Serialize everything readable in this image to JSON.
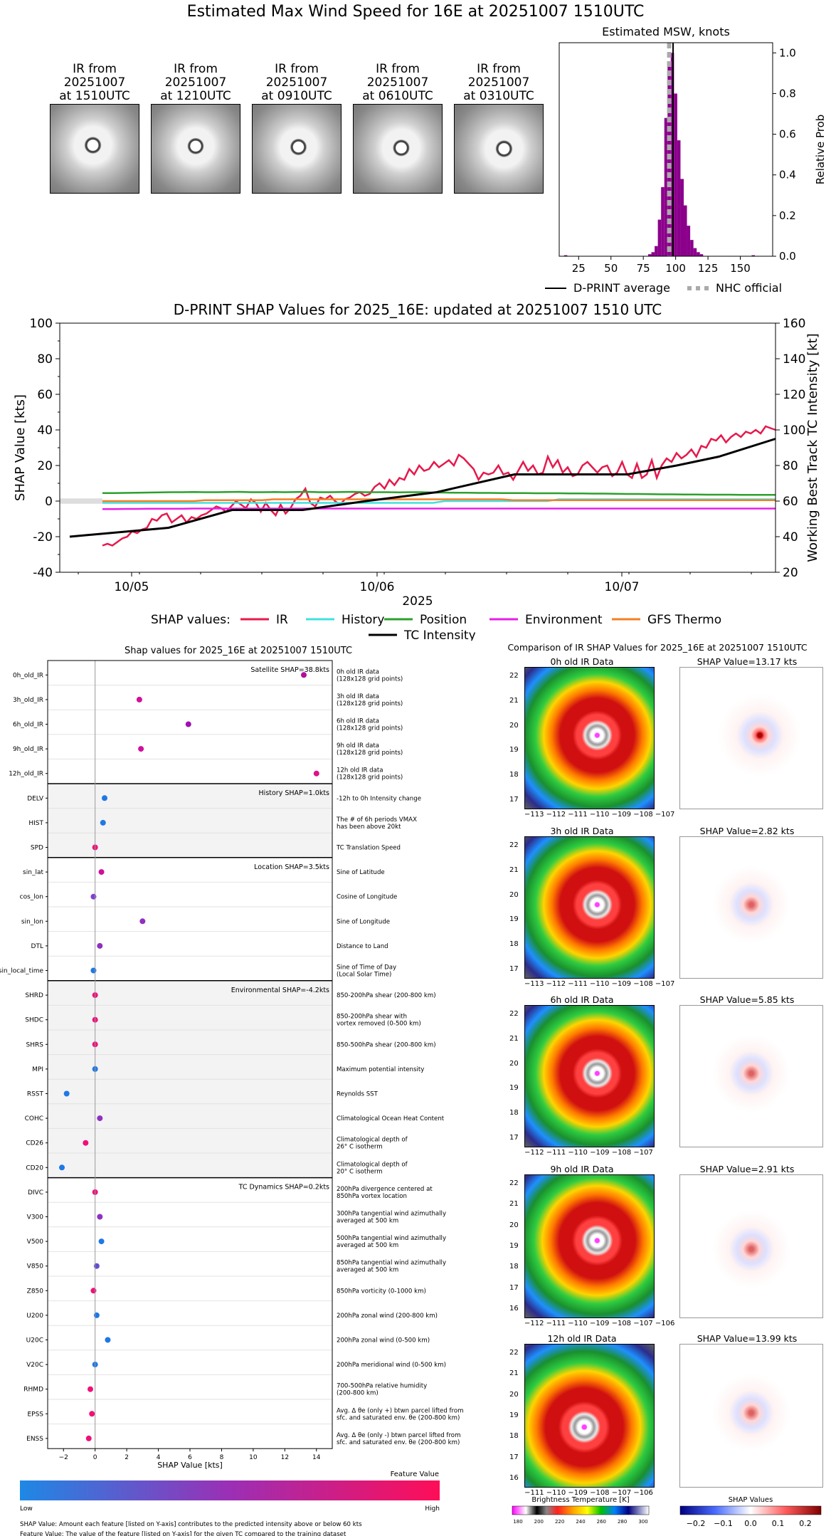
{
  "page_title": "Estimated Max Wind Speed for 16E at 20251007 1510UTC",
  "ir_thumbnails": [
    {
      "caption": "IR from\n20251007\nat 1510UTC"
    },
    {
      "caption": "IR from\n20251007\nat 1210UTC"
    },
    {
      "caption": "IR from\n20251007\nat 0910UTC"
    },
    {
      "caption": "IR from\n20251007\nat 0610UTC"
    },
    {
      "caption": "IR from\n20251007\nat 0310UTC"
    }
  ],
  "chart_data": [
    {
      "type": "bar",
      "title": "Estimated MSW, knots",
      "ylabel": "Relative Prob",
      "xlim": [
        10,
        175
      ],
      "ylim": [
        0,
        1.05
      ],
      "xticks": [
        25,
        50,
        75,
        100,
        125,
        150
      ],
      "yticks": [
        "0.0",
        "0.2",
        "0.4",
        "0.6",
        "0.8",
        "1.0"
      ],
      "bar_color": "#8b008b",
      "bin_width": 2.5,
      "bins": [
        {
          "x": 15,
          "y": 0.005
        },
        {
          "x": 80,
          "y": 0.01
        },
        {
          "x": 82.5,
          "y": 0.02
        },
        {
          "x": 85,
          "y": 0.05
        },
        {
          "x": 87.5,
          "y": 0.18
        },
        {
          "x": 90,
          "y": 0.34
        },
        {
          "x": 92.5,
          "y": 0.68
        },
        {
          "x": 95,
          "y": 0.95
        },
        {
          "x": 97.5,
          "y": 1.0
        },
        {
          "x": 100,
          "y": 0.8
        },
        {
          "x": 102.5,
          "y": 0.57
        },
        {
          "x": 105,
          "y": 0.38
        },
        {
          "x": 107.5,
          "y": 0.25
        },
        {
          "x": 110,
          "y": 0.15
        },
        {
          "x": 112.5,
          "y": 0.08
        },
        {
          "x": 115,
          "y": 0.04
        },
        {
          "x": 117.5,
          "y": 0.02
        },
        {
          "x": 120,
          "y": 0.01
        },
        {
          "x": 160,
          "y": 0.005
        }
      ],
      "dprint_average": 98,
      "nhc_official": 95,
      "legend": [
        "D-PRINT average",
        "NHC official"
      ]
    },
    {
      "type": "line",
      "title": "D-PRINT SHAP Values for 2025_16E: updated at 20251007 1510 UTC",
      "xlabel": "2025",
      "ylabel": "SHAP Value [kts]",
      "y2label": "Working Best Track TC Intensity [kt]",
      "xtick_labels": [
        "10/05",
        "10/06",
        "10/07"
      ],
      "ylim": [
        -40,
        100
      ],
      "yticks": [
        -40,
        -20,
        0,
        20,
        40,
        60,
        80,
        100
      ],
      "y2lim": [
        20,
        160
      ],
      "y2ticks": [
        20,
        40,
        60,
        80,
        100,
        120,
        140,
        160
      ],
      "legend_label": "SHAP values:",
      "series": [
        {
          "name": "IR",
          "color": "#e6194b",
          "axis": "left",
          "values": [
            -25,
            -24,
            -25,
            -23,
            -21,
            -20,
            -17,
            -18,
            -16,
            -15,
            -10,
            -11,
            -8,
            -7,
            -12,
            -10,
            -8,
            -12,
            -9,
            -10,
            -8,
            -7,
            -5,
            -3,
            -4,
            -6,
            -3,
            0,
            -2,
            -4,
            1,
            -1,
            -6,
            -1,
            -5,
            -8,
            -2,
            -7,
            -4,
            1,
            3,
            7,
            -1,
            -3,
            2,
            1,
            3,
            0,
            -2,
            1,
            2,
            4,
            5,
            3,
            4,
            8,
            10,
            7,
            12,
            9,
            13,
            12,
            18,
            15,
            20,
            17,
            18,
            22,
            19,
            21,
            23,
            20,
            26,
            24,
            21,
            18,
            12,
            16,
            15,
            16,
            20,
            15,
            16,
            12,
            17,
            22,
            17,
            20,
            15,
            16,
            25,
            19,
            23,
            16,
            19,
            14,
            15,
            20,
            22,
            19,
            16,
            19,
            20,
            14,
            16,
            22,
            15,
            13,
            21,
            13,
            15,
            23,
            13,
            20,
            24,
            22,
            27,
            24,
            26,
            29,
            25,
            31,
            30,
            35,
            34,
            37,
            33,
            36,
            38,
            36,
            39,
            38,
            40,
            38,
            42,
            41,
            40
          ]
        },
        {
          "name": "History",
          "color": "#40e0e0",
          "axis": "left",
          "values": [
            -1,
            -1,
            -1,
            -1,
            -1,
            -1,
            -1,
            -1,
            -1,
            -1,
            -1,
            -1,
            -1,
            -1,
            -1,
            -1,
            -1,
            -1,
            -1,
            -1,
            -1,
            -1,
            -1,
            -1,
            -1,
            -1,
            -1,
            -1,
            -1,
            -1,
            0,
            0,
            0,
            0,
            0,
            0,
            0,
            0,
            0,
            0,
            1,
            1,
            1,
            1,
            1,
            1,
            1,
            1,
            1,
            1,
            1,
            1,
            1,
            1,
            1,
            1,
            1,
            1,
            1,
            1
          ]
        },
        {
          "name": "Position",
          "color": "#2ca02c",
          "axis": "left",
          "values": [
            4.5,
            4.5,
            4.6,
            4.7,
            4.8,
            4.9,
            5,
            5,
            5.1,
            5,
            5,
            5.1,
            5.2,
            5,
            5,
            5.1,
            5,
            5.1,
            5.2,
            5,
            5,
            5.1,
            5.2,
            5,
            5,
            5,
            4.9,
            5,
            5,
            4.8,
            4.8,
            4.7,
            4.7,
            4.6,
            4.6,
            4.5,
            4.5,
            4.5,
            4.4,
            4.4,
            4.4,
            4.3,
            4.3,
            4.2,
            4.2,
            4.1,
            4.0,
            4.0,
            3.9,
            3.8,
            3.8,
            3.7,
            3.7,
            3.6,
            3.6,
            3.6,
            3.5,
            3.5,
            3.5,
            3.5
          ]
        },
        {
          "name": "Environment",
          "color": "#e61ee6",
          "axis": "left",
          "values": [
            -4.5,
            -4.5,
            -4.4,
            -4.4,
            -4.3,
            -4.3,
            -4.3,
            -4.3,
            -4.2,
            -4.2,
            -4.2,
            -4.2,
            -4.2,
            -4.2,
            -4.2,
            -4.2,
            -4.2,
            -4.2,
            -4.2,
            -4.2,
            -4.2,
            -4.2,
            -4.2,
            -4.2,
            -4.2,
            -4.2,
            -4.2,
            -4.2,
            -4.2,
            -4.2,
            -4.2,
            -4.2,
            -4.2,
            -4.2,
            -4.2,
            -4.2,
            -4.2,
            -4.2,
            -4.2,
            -4.2,
            -4.2,
            -4.2,
            -4.2,
            -4.2,
            -4.2,
            -4.2,
            -4.2,
            -4.2,
            -4.2,
            -4.2,
            -4.2,
            -4.2,
            -4.2,
            -4.2,
            -4.2,
            -4.2,
            -4.2,
            -4.2,
            -4.2,
            -4.2
          ]
        },
        {
          "name": "GFS Thermo",
          "color": "#f57f20",
          "axis": "left",
          "values": [
            0,
            0,
            0,
            0,
            0,
            0,
            0,
            0,
            0,
            0.5,
            0.5,
            0.5,
            0.5,
            0.5,
            0.5,
            1,
            1,
            1,
            1,
            1,
            1,
            1,
            1,
            1,
            1,
            1,
            1,
            1,
            1,
            1,
            1,
            1,
            1,
            1,
            1,
            1,
            0.5,
            0.5,
            0.5,
            0.5,
            0.5,
            0.5,
            0.5,
            0.5,
            0.5,
            0.5,
            0.5,
            0.5,
            0.5,
            0.5,
            0.5,
            0.5,
            0.5,
            0.5,
            0.5,
            0.5,
            0.5,
            0.5,
            0.5,
            0.5
          ]
        },
        {
          "name": "TC Intensity",
          "color": "#000000",
          "axis": "right",
          "points": [
            [
              0,
              40
            ],
            [
              0.14,
              45
            ],
            [
              0.23,
              55
            ],
            [
              0.33,
              55
            ],
            [
              0.42,
              60
            ],
            [
              0.52,
              65
            ],
            [
              0.63,
              75
            ],
            [
              0.79,
              75
            ],
            [
              0.86,
              80
            ],
            [
              0.92,
              85
            ],
            [
              1.0,
              95
            ]
          ]
        }
      ]
    },
    {
      "type": "scatter",
      "title": "Shap values for 2025_16E at 20251007 1510UTC",
      "xlabel": "SHAP Value [kts]",
      "xlim": [
        -3,
        15
      ],
      "xticks": [
        -2,
        0,
        2,
        4,
        6,
        8,
        10,
        12,
        14
      ],
      "groups": [
        {
          "label": "Satellite SHAP=38.8kts",
          "shaded": false,
          "features": [
            {
              "name": "0h_old_IR",
              "desc": "0h old IR data\n(128x128 grid points)",
              "value": 13.2,
              "color": "#b0109a"
            },
            {
              "name": "3h_old_IR",
              "desc": "3h old IR data\n(128x128 grid points)",
              "value": 2.8,
              "color": "#d0109a"
            },
            {
              "name": "6h_old_IR",
              "desc": "6h old IR data\n(128x128 grid points)",
              "value": 5.9,
              "color": "#a010b0"
            },
            {
              "name": "9h_old_IR",
              "desc": "9h old IR data\n(128x128 grid points)",
              "value": 2.9,
              "color": "#d0109a"
            },
            {
              "name": "12h_old_IR",
              "desc": "12h old IR data\n(128x128 grid points)",
              "value": 14.0,
              "color": "#e00f8a"
            }
          ]
        },
        {
          "label": "History SHAP=1.0kts",
          "shaded": true,
          "features": [
            {
              "name": "DELV",
              "desc": "-12h to 0h Intensity change",
              "value": 0.6,
              "color": "#1e78e6"
            },
            {
              "name": "HIST",
              "desc": "The # of 6h periods VMAX\nhas been above 20kt",
              "value": 0.5,
              "color": "#1e78e6"
            },
            {
              "name": "SPD",
              "desc": "TC Translation Speed",
              "value": 0.0,
              "color": "#f0107a"
            }
          ]
        },
        {
          "label": "Location SHAP=3.5kts",
          "shaded": false,
          "features": [
            {
              "name": "sin_lat",
              "desc": "Sine of Latitude",
              "value": 0.4,
              "color": "#d00f9a"
            },
            {
              "name": "cos_lon",
              "desc": "Cosine of Longitude",
              "value": -0.1,
              "color": "#8040d0"
            },
            {
              "name": "sin_lon",
              "desc": "Sine of Longitude",
              "value": 3.0,
              "color": "#9030c0"
            },
            {
              "name": "DTL",
              "desc": "Distance to Land",
              "value": 0.3,
              "color": "#9030c0"
            },
            {
              "name": "sin_local_time",
              "desc": "Sine of Time of Day\n(Local Solar Time)",
              "value": -0.1,
              "color": "#1e78e6"
            }
          ]
        },
        {
          "label": "Environmental SHAP=-4.2kts",
          "shaded": true,
          "features": [
            {
              "name": "SHRD",
              "desc": "850-200hPa shear (200-800 km)",
              "value": 0.0,
              "color": "#f0107a"
            },
            {
              "name": "SHDC",
              "desc": "850-200hPa shear with\nvortex removed (0-500 km)",
              "value": 0.0,
              "color": "#f0107a"
            },
            {
              "name": "SHRS",
              "desc": "850-500hPa shear (200-800 km)",
              "value": 0.0,
              "color": "#f0107a"
            },
            {
              "name": "MPI",
              "desc": "Maximum potential intensity",
              "value": 0.0,
              "color": "#1e78e6"
            },
            {
              "name": "RSST",
              "desc": "Reynolds SST",
              "value": -1.8,
              "color": "#1e78e6"
            },
            {
              "name": "COHC",
              "desc": "Climatological Ocean Heat Content",
              "value": 0.3,
              "color": "#9030c0"
            },
            {
              "name": "CD26",
              "desc": "Climatological depth of\n26° C isotherm",
              "value": -0.6,
              "color": "#f0107a"
            },
            {
              "name": "CD20",
              "desc": "Climatological depth of\n20° C isotherm",
              "value": -2.1,
              "color": "#1e78e6"
            }
          ]
        },
        {
          "label": "TC Dynamics SHAP=0.2kts",
          "shaded": false,
          "features": [
            {
              "name": "DIVC",
              "desc": "200hPa divergence centered at\n850hPa vortex location",
              "value": 0.0,
              "color": "#f0107a"
            },
            {
              "name": "V300",
              "desc": "300hPa tangential wind azimuthally\naveraged at 500 km",
              "value": 0.3,
              "color": "#9030c0"
            },
            {
              "name": "V500",
              "desc": "500hPa tangential wind azimuthally\naveraged at 500 km",
              "value": 0.4,
              "color": "#1e78e6"
            },
            {
              "name": "V850",
              "desc": "850hPa tangential wind azimuthally\naveraged at 500 km",
              "value": 0.1,
              "color": "#6050d0"
            },
            {
              "name": "Z850",
              "desc": "850hPa vorticity (0-1000 km)",
              "value": -0.1,
              "color": "#f0107a"
            },
            {
              "name": "U200",
              "desc": "200hPa zonal wind (200-800 km)",
              "value": 0.1,
              "color": "#1e78e6"
            },
            {
              "name": "U20C",
              "desc": "200hPa zonal wind (0-500 km)",
              "value": 0.8,
              "color": "#1e78e6"
            },
            {
              "name": "V20C",
              "desc": "200hPa meridional wind (0-500 km)",
              "value": 0.0,
              "color": "#1e78e6"
            },
            {
              "name": "RHMD",
              "desc": "700-500hPa relative humidity\n(200-800 km)",
              "value": -0.3,
              "color": "#f0107a"
            },
            {
              "name": "EPSS",
              "desc": "Avg. Δ θe (only +) btwn parcel lifted from\nsfc. and saturated env. θe (200-800 km)",
              "value": -0.2,
              "color": "#f0107a"
            },
            {
              "name": "ENSS",
              "desc": "Avg. Δ θe (only -) btwn parcel lifted from\nsfc. and saturated env. θe (200-800 km)",
              "value": -0.4,
              "color": "#f0107a"
            }
          ]
        }
      ]
    }
  ],
  "feature_colorbar": {
    "title": "Feature Value",
    "low": "Low",
    "high": "High"
  },
  "footnotes": [
    "SHAP Value: Amount each feature [listed on Y-axis] contributes to the predicted intensity above or below 60 kts",
    "Feature Value: The value of the feature [listed on Y-axis] for the given TC compared to the training dataset"
  ],
  "ir_comparison": {
    "title": "Comparison of IR SHAP Values for 2025_16E at 20251007 1510UTC",
    "rows": [
      {
        "map_title": "0h old IR Data",
        "shap_title": "SHAP Value=13.17 kts",
        "yticks": [
          "22",
          "21",
          "20",
          "19",
          "18",
          "17"
        ],
        "xticks": "−113 −112 −111 −110 −109 −108 −107"
      },
      {
        "map_title": "3h old IR Data",
        "shap_title": "SHAP Value=2.82 kts",
        "yticks": [
          "22",
          "21",
          "20",
          "19",
          "18",
          "17"
        ],
        "xticks": "−113 −112 −111 −110 −109 −108 −107"
      },
      {
        "map_title": "6h old IR Data",
        "shap_title": "SHAP Value=5.85 kts",
        "yticks": [
          "22",
          "21",
          "20",
          "19",
          "18",
          "17"
        ],
        "xticks": "−112 −111 −110 −109 −108 −107"
      },
      {
        "map_title": "9h old IR Data",
        "shap_title": "SHAP Value=2.91 kts",
        "yticks": [
          "22",
          "21",
          "20",
          "19",
          "18",
          "17",
          "16"
        ],
        "xticks": "−112 −111 −110 −109 −108 −107 −106"
      },
      {
        "map_title": "12h old IR Data",
        "shap_title": "SHAP Value=13.99 kts",
        "yticks": [
          "22",
          "21",
          "20",
          "19",
          "18",
          "17",
          "16"
        ],
        "xticks": "−111 −110 −109 −108 −107 −106"
      }
    ],
    "bt_colorbar": {
      "title": "Brightness Temperature [K]",
      "ticks": [
        "180",
        "200",
        "220",
        "240",
        "260",
        "280",
        "300"
      ]
    },
    "shap_colorbar": {
      "title": "SHAP Values",
      "ticks": [
        "−0.2",
        "−0.1",
        "0.0",
        "0.1",
        "0.2"
      ]
    }
  }
}
